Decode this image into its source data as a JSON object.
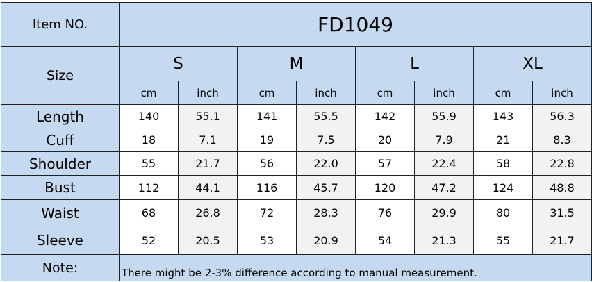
{
  "header": {
    "item_label": "Item NO.",
    "item_no": "FD1049",
    "size_label": "Size",
    "sizes": [
      "S",
      "M",
      "L",
      "XL"
    ],
    "units": [
      "cm",
      "inch",
      "cm",
      "inch",
      "cm",
      "inch",
      "cm",
      "inch"
    ]
  },
  "table": {
    "rows": [
      {
        "label": "Length",
        "values": [
          "140",
          "55.1",
          "141",
          "55.5",
          "142",
          "55.9",
          "143",
          "56.3"
        ]
      },
      {
        "label": "Cuff",
        "values": [
          "18",
          "7.1",
          "19",
          "7.5",
          "20",
          "7.9",
          "21",
          "8.3"
        ]
      },
      {
        "label": "Shoulder",
        "values": [
          "55",
          "21.7",
          "56",
          "22.0",
          "57",
          "22.4",
          "58",
          "22.8"
        ]
      },
      {
        "label": "Bust",
        "values": [
          "112",
          "44.1",
          "116",
          "45.7",
          "120",
          "47.2",
          "124",
          "48.8"
        ]
      },
      {
        "label": "Waist",
        "values": [
          "68",
          "26.8",
          "72",
          "28.3",
          "76",
          "29.9",
          "80",
          "31.5"
        ]
      },
      {
        "label": "Sleeve",
        "values": [
          "52",
          "20.5",
          "53",
          "20.9",
          "54",
          "21.3",
          "55",
          "21.7"
        ]
      }
    ]
  },
  "note": {
    "label": "Note:",
    "text": "There might be 2-3% difference according to manual measurement."
  }
}
